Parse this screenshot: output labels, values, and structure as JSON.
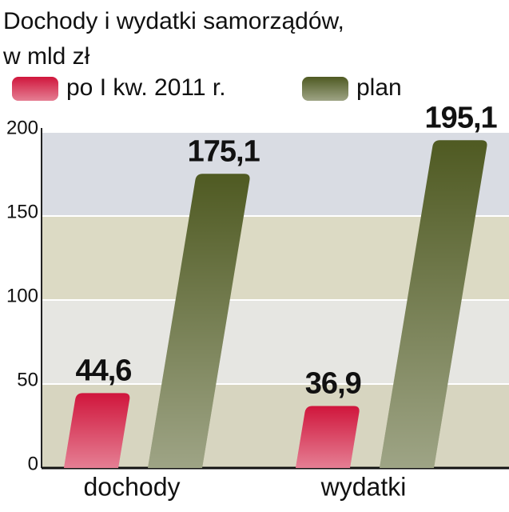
{
  "chart_data": {
    "type": "bar",
    "title": "Dochody i wydatki samorządów,",
    "subtitle": "w mld zł",
    "categories": [
      "dochody",
      "wydatki"
    ],
    "series": [
      {
        "name": "po I kw. 2011 r.",
        "color": "#d0163c",
        "values": [
          44.6,
          36.9
        ],
        "value_labels": [
          "44,6",
          "36,9"
        ]
      },
      {
        "name": "plan",
        "color": "#4f5a22",
        "values": [
          175.1,
          195.1
        ],
        "value_labels": [
          "175,1",
          "195,1"
        ]
      }
    ],
    "ylim": [
      0,
      200
    ],
    "yticks": [
      0,
      50,
      100,
      150,
      200
    ],
    "grid": true
  }
}
